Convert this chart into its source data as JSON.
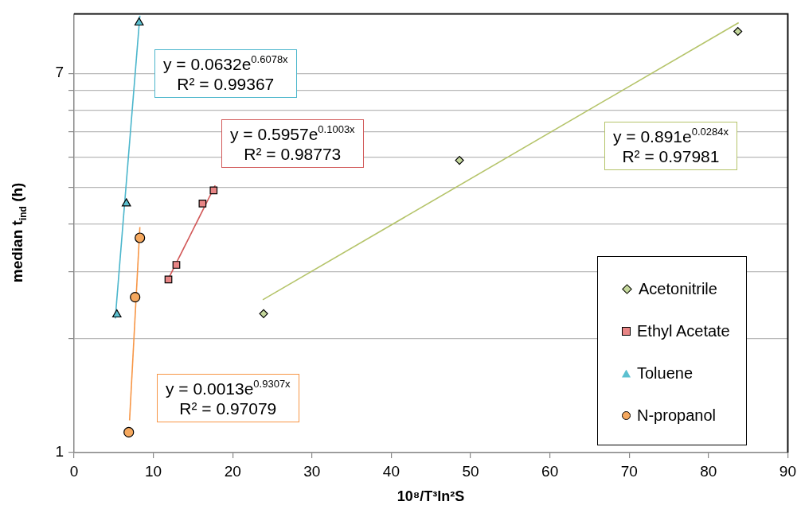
{
  "chart_data": {
    "type": "scatter",
    "xlabel": "10⁸/T³ln²S",
    "ylabel": "median t$_{ind}$ (h)",
    "xlim": [
      0,
      90
    ],
    "xticks": [
      0,
      10,
      20,
      30,
      40,
      50,
      60,
      70,
      80,
      90
    ],
    "ylim": [
      1,
      9.5
    ],
    "log": "y",
    "yticks": [
      1,
      {
        "value": 1.796,
        "label": null
      },
      {
        "value": 2.531,
        "label": null
      },
      {
        "value": 3.227,
        "label": null
      },
      {
        "value": 3.897,
        "label": null
      },
      {
        "value": 4.546,
        "label": null
      },
      {
        "value": 5.179,
        "label": null
      },
      {
        "value": 5.798,
        "label": null
      },
      {
        "value": 6.404,
        "label": null
      },
      7
    ],
    "grid": "y",
    "legend": "bottom right",
    "series": [
      {
        "name": "Acetonitrile",
        "marker": "diamond",
        "color": "#c4d79b",
        "x": [
          23.9,
          48.6,
          83.7
        ],
        "values": [
          2.04,
          4.48,
          8.68
        ]
      },
      {
        "name": "Ethyl Acetate",
        "marker": "square",
        "color": "#e88585",
        "x": [
          11.9,
          12.9,
          16.2,
          17.6
        ],
        "values": [
          2.43,
          2.62,
          3.59,
          3.84
        ]
      },
      {
        "name": "Toluene",
        "marker": "triangle",
        "color": "#5bc0d0",
        "x": [
          5.4,
          6.6,
          8.2
        ],
        "values": [
          2.03,
          3.59,
          9.08
        ]
      },
      {
        "name": "N-propanol",
        "marker": "circle",
        "color": "#f5a85e",
        "x": [
          6.9,
          7.7,
          8.3
        ],
        "values": [
          1.11,
          2.22,
          3.01
        ]
      },
      {
        "type": "line",
        "marker": "none",
        "color": "#b5c46a",
        "x": [
          23.8,
          83.8
        ],
        "values": [
          2.19,
          9.08
        ]
      },
      {
        "type": "line",
        "marker": "none",
        "color": "#d25a5a",
        "x": [
          11.9,
          17.8
        ],
        "values": [
          2.44,
          3.94
        ]
      },
      {
        "type": "line",
        "marker": "none",
        "color": "#4bb6cc",
        "x": [
          5.2,
          8.3
        ],
        "values": [
          1.99,
          9.41
        ]
      },
      {
        "type": "line",
        "marker": "none",
        "color": "#f79646",
        "x": [
          7.0,
          8.3
        ],
        "values": [
          1.18,
          3.18
        ]
      }
    ],
    "annotations": [
      "y = 0.891e$^{0.0284x}$\nR² = 0.97981",
      "y = 0.5957e$^{0.1003x}$\nR² = 0.98773",
      "y = 0.0632e$^{0.6078x}$\nR² = 0.99367",
      "y = 0.0013e$^{0.9307x}$\nR² = 0.97079"
    ]
  }
}
